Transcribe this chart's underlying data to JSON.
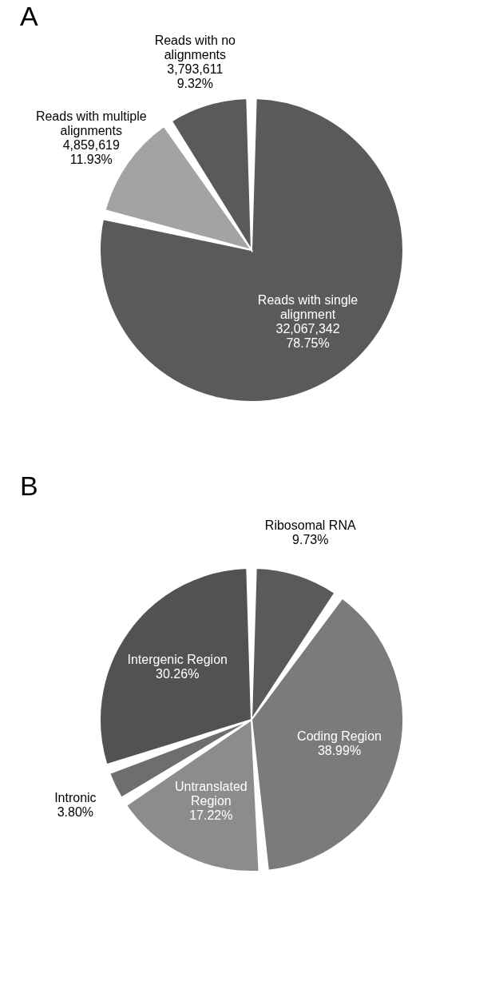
{
  "chart_data": [
    {
      "type": "pie",
      "title": "A",
      "categories": [
        "Reads with single alignment",
        "Reads with multiple alignments",
        "Reads with no alignments"
      ],
      "values": [
        32067342,
        4859619,
        3793611
      ],
      "value_labels": [
        "32,067,342\n78.75%",
        "4,859,619\n11.93%",
        "3,793,611\n9.32%"
      ],
      "colors": [
        "#5a5a5a",
        "#a3a3a3",
        "#5a5a5a"
      ]
    },
    {
      "type": "pie",
      "title": "B",
      "categories": [
        "Ribosomal RNA",
        "Coding Region",
        "Untranslated Region",
        "Intronic",
        "Intergenic Region"
      ],
      "values": [
        9.73,
        38.99,
        17.22,
        3.8,
        30.26
      ],
      "value_labels": [
        "9.73%",
        "38.99%",
        "17.22%",
        "3.80%",
        "30.26%"
      ],
      "colors": [
        "#5a5a5a",
        "#7b7b7b",
        "#8c8c8c",
        "#6e6e6e",
        "#525252"
      ]
    }
  ]
}
